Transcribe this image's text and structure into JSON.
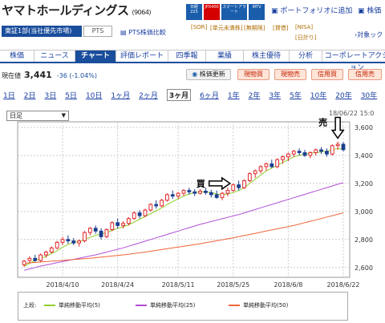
{
  "header": {
    "title": "ヤマトホールディングス",
    "code": "(9064)",
    "badges": [
      {
        "label": "日経225",
        "color": "#1a5dab"
      },
      {
        "label": "JPX400",
        "color": "#d40000"
      },
      {
        "label": "スマートアラート",
        "color": "#1a5dab"
      },
      {
        "label": "IRTV",
        "color": "#1a5dab"
      }
    ],
    "links": [
      "ポートフォリオに追加",
      "株価"
    ],
    "market": "東証1部(当社優先市場)",
    "pts": "PTS",
    "pts_link": "PTS株価比較",
    "tags": [
      "[SOR]",
      "[単元未満株]",
      "[無期限]",
      "[貸借]",
      "[NISA]",
      "[日計り]"
    ],
    "cart_link": "対象ック"
  },
  "nav": {
    "items": [
      "株価",
      "ニュース",
      "チャート",
      "評価レポート",
      "四季報",
      "業績",
      "株主優待",
      "分析",
      "コーポレートアクション"
    ],
    "active_index": 2
  },
  "price_row": {
    "label": "現在値",
    "price": "3,441",
    "change": "-36 (-1.04%)",
    "buttons": [
      "株価更新",
      "現物買",
      "現物売",
      "信用買",
      "信用売"
    ]
  },
  "periods": {
    "items": [
      "1日",
      "2日",
      "3日",
      "5日",
      "10日",
      "1ヶ月",
      "2ヶ月",
      "3ヶ月",
      "6ヶ月",
      "1年",
      "2年",
      "3年",
      "5年",
      "10年",
      "20年",
      "30年"
    ],
    "active_index": 7
  },
  "chart_controls": {
    "select_value": "日足",
    "datetime": "18/06/22 15:0"
  },
  "chart_data": {
    "type": "candlestick",
    "title": "",
    "xlabel": "",
    "ylabel": "",
    "ylim": [
      2530,
      3640
    ],
    "y_ticks": [
      "3,600",
      "3,400",
      "3,200",
      "3,000",
      "2,800",
      "2,600"
    ],
    "y_tick_values": [
      3600,
      3400,
      3200,
      3000,
      2800,
      2600
    ],
    "x_ticks": [
      "2018/4/10",
      "2018/4/24",
      "2018/5/11",
      "2018/5/25",
      "2018/6/8",
      "2018/6/22"
    ],
    "x_tick_index": [
      7,
      17,
      28,
      38,
      48,
      58
    ],
    "grid": true,
    "candles": [
      {
        "o": 2620,
        "h": 2655,
        "l": 2605,
        "c": 2645
      },
      {
        "o": 2650,
        "h": 2680,
        "l": 2630,
        "c": 2665
      },
      {
        "o": 2665,
        "h": 2690,
        "l": 2640,
        "c": 2650
      },
      {
        "o": 2650,
        "h": 2700,
        "l": 2640,
        "c": 2690
      },
      {
        "o": 2690,
        "h": 2720,
        "l": 2670,
        "c": 2710
      },
      {
        "o": 2710,
        "h": 2750,
        "l": 2700,
        "c": 2740
      },
      {
        "o": 2740,
        "h": 2790,
        "l": 2730,
        "c": 2780
      },
      {
        "o": 2780,
        "h": 2820,
        "l": 2760,
        "c": 2800
      },
      {
        "o": 2800,
        "h": 2830,
        "l": 2770,
        "c": 2790
      },
      {
        "o": 2790,
        "h": 2810,
        "l": 2760,
        "c": 2775
      },
      {
        "o": 2775,
        "h": 2800,
        "l": 2750,
        "c": 2790
      },
      {
        "o": 2790,
        "h": 2860,
        "l": 2780,
        "c": 2850
      },
      {
        "o": 2850,
        "h": 2890,
        "l": 2830,
        "c": 2880
      },
      {
        "o": 2880,
        "h": 2900,
        "l": 2840,
        "c": 2860
      },
      {
        "o": 2860,
        "h": 2880,
        "l": 2800,
        "c": 2820
      },
      {
        "o": 2820,
        "h": 2880,
        "l": 2810,
        "c": 2870
      },
      {
        "o": 2870,
        "h": 2930,
        "l": 2860,
        "c": 2920
      },
      {
        "o": 2920,
        "h": 2950,
        "l": 2880,
        "c": 2900
      },
      {
        "o": 2900,
        "h": 2930,
        "l": 2880,
        "c": 2915
      },
      {
        "o": 2915,
        "h": 2960,
        "l": 2900,
        "c": 2950
      },
      {
        "o": 2950,
        "h": 3000,
        "l": 2940,
        "c": 2990
      },
      {
        "o": 2990,
        "h": 3010,
        "l": 2950,
        "c": 2970
      },
      {
        "o": 2970,
        "h": 3020,
        "l": 2960,
        "c": 3010
      },
      {
        "o": 3010,
        "h": 3060,
        "l": 3000,
        "c": 3050
      },
      {
        "o": 3050,
        "h": 3080,
        "l": 3020,
        "c": 3040
      },
      {
        "o": 3040,
        "h": 3090,
        "l": 3030,
        "c": 3080
      },
      {
        "o": 3080,
        "h": 3130,
        "l": 3070,
        "c": 3120
      },
      {
        "o": 3120,
        "h": 3150,
        "l": 3090,
        "c": 3110
      },
      {
        "o": 3110,
        "h": 3140,
        "l": 3090,
        "c": 3130
      },
      {
        "o": 3130,
        "h": 3160,
        "l": 3110,
        "c": 3150
      },
      {
        "o": 3150,
        "h": 3170,
        "l": 3120,
        "c": 3140
      },
      {
        "o": 3140,
        "h": 3160,
        "l": 3110,
        "c": 3130
      },
      {
        "o": 3130,
        "h": 3160,
        "l": 3120,
        "c": 3145
      },
      {
        "o": 3145,
        "h": 3170,
        "l": 3120,
        "c": 3135
      },
      {
        "o": 3135,
        "h": 3155,
        "l": 3100,
        "c": 3120
      },
      {
        "o": 3120,
        "h": 3150,
        "l": 3090,
        "c": 3100
      },
      {
        "o": 3100,
        "h": 3140,
        "l": 3080,
        "c": 3130
      },
      {
        "o": 3130,
        "h": 3170,
        "l": 3110,
        "c": 3150
      },
      {
        "o": 3150,
        "h": 3200,
        "l": 3140,
        "c": 3190
      },
      {
        "o": 3190,
        "h": 3220,
        "l": 3150,
        "c": 3170
      },
      {
        "o": 3170,
        "h": 3230,
        "l": 3160,
        "c": 3220
      },
      {
        "o": 3220,
        "h": 3280,
        "l": 3210,
        "c": 3270
      },
      {
        "o": 3270,
        "h": 3300,
        "l": 3240,
        "c": 3290
      },
      {
        "o": 3290,
        "h": 3330,
        "l": 3270,
        "c": 3320
      },
      {
        "o": 3320,
        "h": 3350,
        "l": 3290,
        "c": 3340
      },
      {
        "o": 3340,
        "h": 3370,
        "l": 3310,
        "c": 3320
      },
      {
        "o": 3320,
        "h": 3380,
        "l": 3310,
        "c": 3370
      },
      {
        "o": 3370,
        "h": 3400,
        "l": 3340,
        "c": 3390
      },
      {
        "o": 3390,
        "h": 3420,
        "l": 3360,
        "c": 3410
      },
      {
        "o": 3410,
        "h": 3440,
        "l": 3390,
        "c": 3430
      },
      {
        "o": 3430,
        "h": 3450,
        "l": 3400,
        "c": 3420
      },
      {
        "o": 3420,
        "h": 3440,
        "l": 3390,
        "c": 3400
      },
      {
        "o": 3400,
        "h": 3430,
        "l": 3380,
        "c": 3420
      },
      {
        "o": 3420,
        "h": 3450,
        "l": 3400,
        "c": 3440
      },
      {
        "o": 3440,
        "h": 3460,
        "l": 3410,
        "c": 3430
      },
      {
        "o": 3430,
        "h": 3450,
        "l": 3390,
        "c": 3410
      },
      {
        "o": 3410,
        "h": 3480,
        "l": 3400,
        "c": 3470
      },
      {
        "o": 3470,
        "h": 3500,
        "l": 3440,
        "c": 3480
      },
      {
        "o": 3480,
        "h": 3495,
        "l": 3430,
        "c": 3441
      }
    ],
    "series": [
      {
        "name": "単純移動平均(5)",
        "color": "#8fcf2a",
        "values": [
          2610,
          2630,
          2650,
          2665,
          2680,
          2700,
          2720,
          2745,
          2765,
          2780,
          2785,
          2800,
          2815,
          2830,
          2840,
          2850,
          2865,
          2880,
          2890,
          2905,
          2925,
          2945,
          2965,
          2985,
          3005,
          3025,
          3050,
          3070,
          3090,
          3110,
          3125,
          3135,
          3140,
          3140,
          3135,
          3125,
          3120,
          3125,
          3135,
          3150,
          3170,
          3200,
          3230,
          3260,
          3290,
          3310,
          3330,
          3350,
          3370,
          3390,
          3400,
          3410,
          3415,
          3420,
          3425,
          3430,
          3440,
          3450,
          3445
        ]
      },
      {
        "name": "単純移動平均(25)",
        "color": "#b14fd6",
        "values": [
          2580,
          2590,
          2600,
          2610,
          2618,
          2626,
          2634,
          2642,
          2650,
          2658,
          2666,
          2674,
          2682,
          2690,
          2700,
          2710,
          2720,
          2730,
          2740,
          2752,
          2764,
          2776,
          2788,
          2800,
          2812,
          2824,
          2836,
          2848,
          2860,
          2872,
          2884,
          2896,
          2908,
          2918,
          2928,
          2938,
          2948,
          2958,
          2968,
          2978,
          2990,
          3002,
          3014,
          3026,
          3038,
          3050,
          3062,
          3074,
          3086,
          3098,
          3110,
          3122,
          3134,
          3146,
          3158,
          3170,
          3182,
          3194,
          3206
        ]
      },
      {
        "name": "単純移動平均(50)",
        "color": "#f0653a",
        "values": [
          2630,
          2633,
          2636,
          2639,
          2642,
          2645,
          2648,
          2651,
          2654,
          2657,
          2660,
          2663,
          2666,
          2670,
          2674,
          2678,
          2682,
          2686,
          2690,
          2695,
          2700,
          2705,
          2710,
          2716,
          2722,
          2728,
          2734,
          2740,
          2746,
          2752,
          2758,
          2764,
          2770,
          2777,
          2784,
          2791,
          2798,
          2805,
          2812,
          2820,
          2828,
          2836,
          2844,
          2852,
          2860,
          2868,
          2876,
          2884,
          2892,
          2900,
          2910,
          2920,
          2930,
          2940,
          2950,
          2960,
          2970,
          2980,
          2990
        ]
      }
    ],
    "annotations": [
      {
        "text": "売",
        "target": "arrow-down",
        "index": 57,
        "value": 3500
      },
      {
        "text": "買",
        "target": "arrow-right",
        "index": 38,
        "value": 3200
      }
    ]
  },
  "legend": {
    "head": "上段:"
  }
}
